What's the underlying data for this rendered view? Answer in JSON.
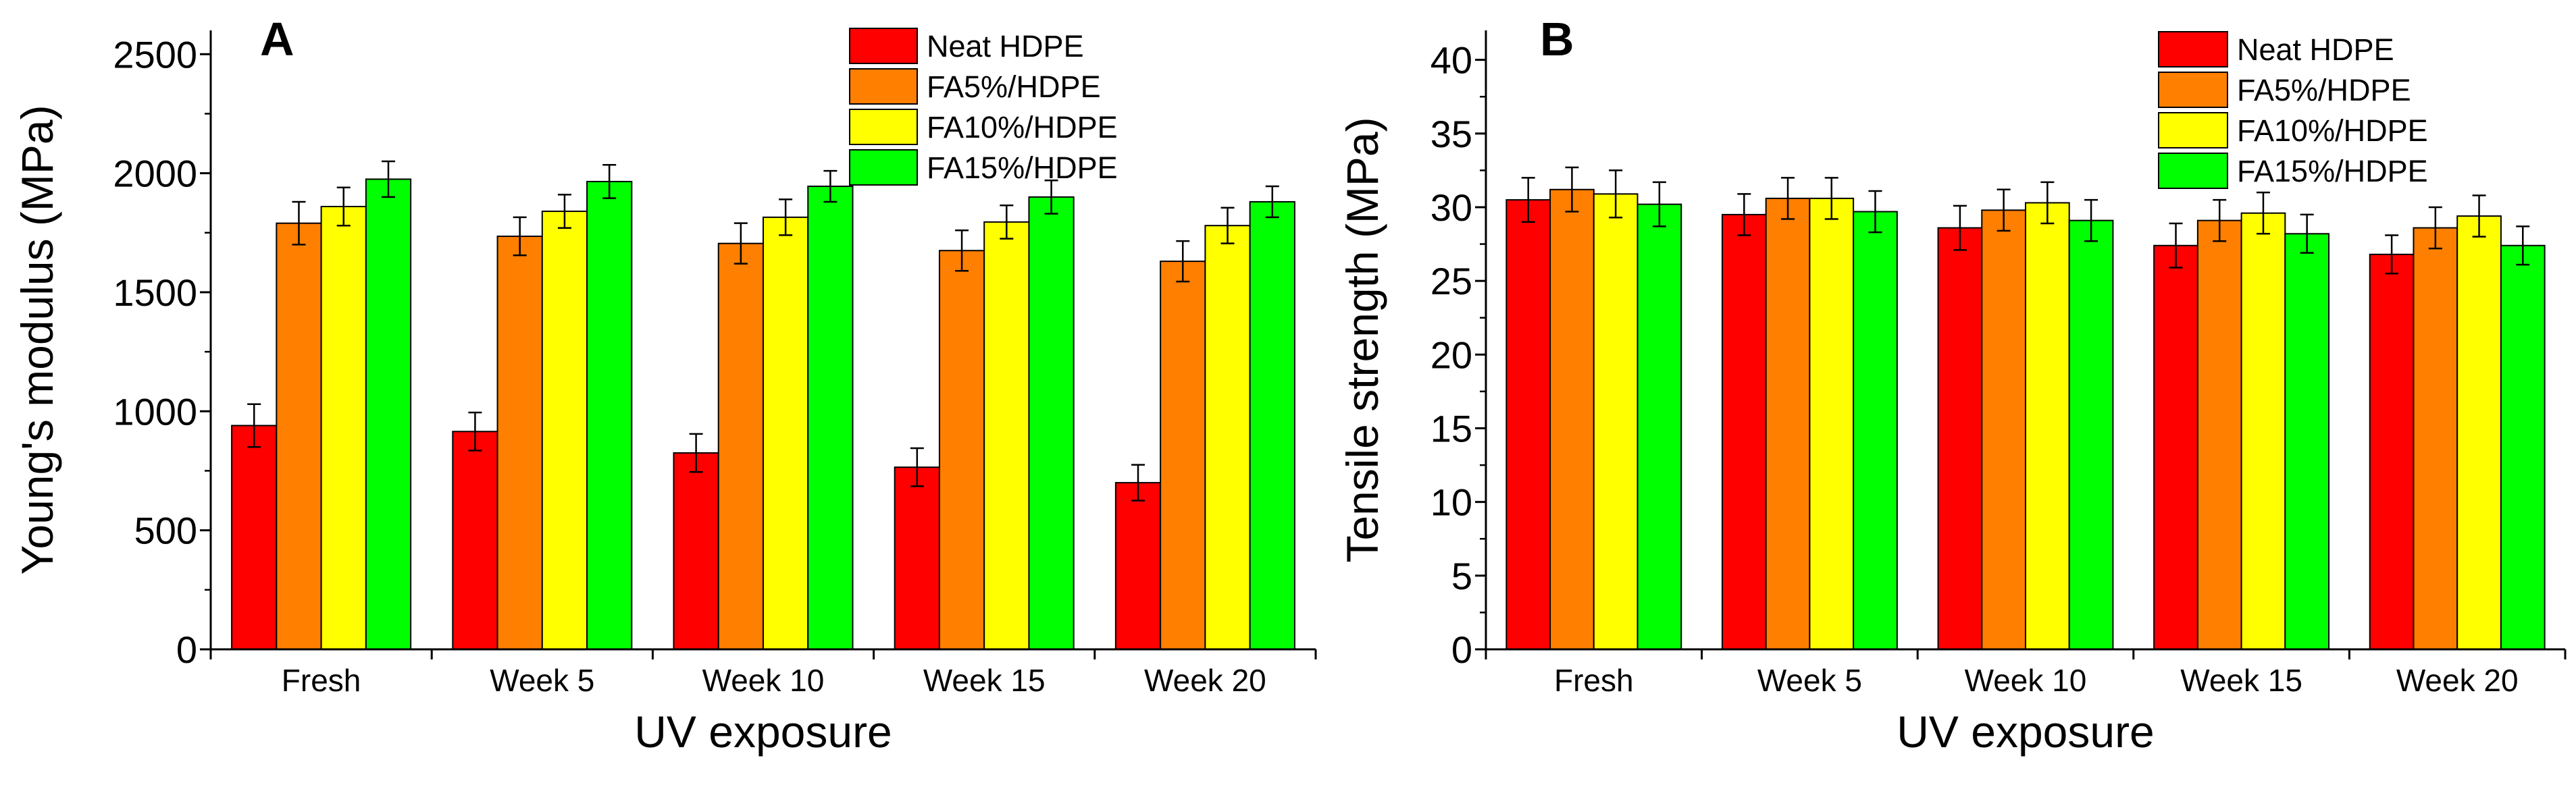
{
  "colors": {
    "Neat HDPE": "#ff0000",
    "FA5%/HDPE": "#ff7f00",
    "FA10%/HDPE": "#ffff00",
    "FA15%/HDPE": "#00ff00"
  },
  "chart_data": [
    {
      "type": "bar",
      "panel": "A",
      "xlabel": "UV exposure",
      "ylabel": "Young's modulus (MPa)",
      "ylim": [
        0,
        2600
      ],
      "yticks": [
        0,
        500,
        1000,
        1500,
        2000,
        2500
      ],
      "categories": [
        "Fresh",
        "Week 5",
        "Week 10",
        "Week 15",
        "Week 20"
      ],
      "legend_position": "top-right",
      "series": [
        {
          "name": "Neat HDPE",
          "values": [
            940,
            915,
            825,
            765,
            700
          ],
          "errors": [
            90,
            80,
            80,
            80,
            75
          ]
        },
        {
          "name": "FA5%/HDPE",
          "values": [
            1790,
            1735,
            1705,
            1675,
            1630
          ],
          "errors": [
            90,
            80,
            85,
            85,
            85
          ]
        },
        {
          "name": "FA10%/HDPE",
          "values": [
            1860,
            1840,
            1815,
            1795,
            1780
          ],
          "errors": [
            80,
            70,
            75,
            70,
            75
          ]
        },
        {
          "name": "FA15%/HDPE",
          "values": [
            1975,
            1965,
            1945,
            1900,
            1880
          ],
          "errors": [
            75,
            70,
            65,
            70,
            65
          ]
        }
      ]
    },
    {
      "type": "bar",
      "panel": "B",
      "xlabel": "UV exposure",
      "ylabel": "Tensile strength (MPa)",
      "ylim": [
        0,
        42
      ],
      "yticks": [
        0,
        5,
        10,
        15,
        20,
        25,
        30,
        35,
        40
      ],
      "categories": [
        "Fresh",
        "Week 5",
        "Week 10",
        "Week 15",
        "Week 20"
      ],
      "legend_position": "top-right",
      "series": [
        {
          "name": "Neat HDPE",
          "values": [
            30.5,
            29.5,
            28.6,
            27.4,
            26.8
          ],
          "errors": [
            1.5,
            1.4,
            1.5,
            1.5,
            1.3
          ]
        },
        {
          "name": "FA5%/HDPE",
          "values": [
            31.2,
            30.6,
            29.8,
            29.1,
            28.6
          ],
          "errors": [
            1.5,
            1.4,
            1.4,
            1.4,
            1.4
          ]
        },
        {
          "name": "FA10%/HDPE",
          "values": [
            30.9,
            30.6,
            30.3,
            29.6,
            29.4
          ],
          "errors": [
            1.6,
            1.4,
            1.4,
            1.4,
            1.4
          ]
        },
        {
          "name": "FA15%/HDPE",
          "values": [
            30.2,
            29.7,
            29.1,
            28.2,
            27.4
          ],
          "errors": [
            1.5,
            1.4,
            1.4,
            1.3,
            1.3
          ]
        }
      ]
    }
  ]
}
